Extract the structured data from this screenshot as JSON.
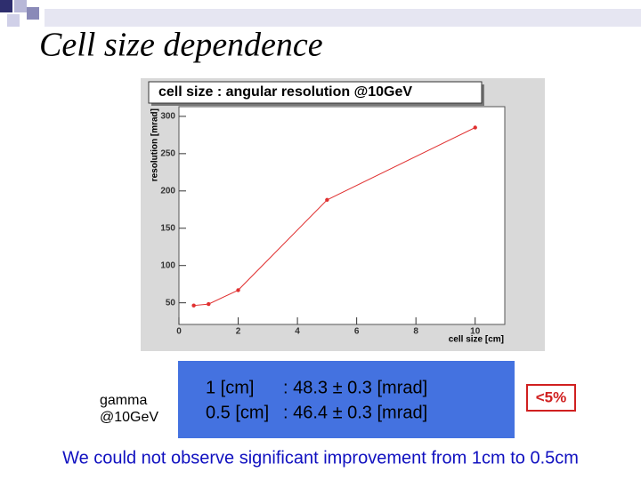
{
  "slide_title": "Cell size dependence",
  "note": [
    "gamma",
    "@10GeV"
  ],
  "results": [
    {
      "size": "1 [cm]",
      "value": ": 48.3 ± 0.3 [mrad]"
    },
    {
      "size": "0.5 [cm]",
      "value": ": 46.4 ± 0.3 [mrad]"
    }
  ],
  "badge": "<5%",
  "conclusion": "We could not observe significant improvement from 1cm to 0.5cm",
  "chart_data": {
    "type": "line",
    "title": "cell size : angular resolution @10GeV",
    "x_label": "cell size [cm]",
    "y_label": "resolution [mrad]",
    "x": [
      0.5,
      1,
      2,
      5,
      10
    ],
    "values": [
      46.4,
      48.3,
      67,
      188,
      285
    ],
    "color": "#e03030",
    "xlim": [
      0,
      11
    ],
    "ylim": [
      21,
      313
    ],
    "xticks": [
      0,
      2,
      4,
      6,
      8,
      10
    ],
    "yticks": [
      50,
      100,
      150,
      200,
      250,
      300
    ]
  }
}
